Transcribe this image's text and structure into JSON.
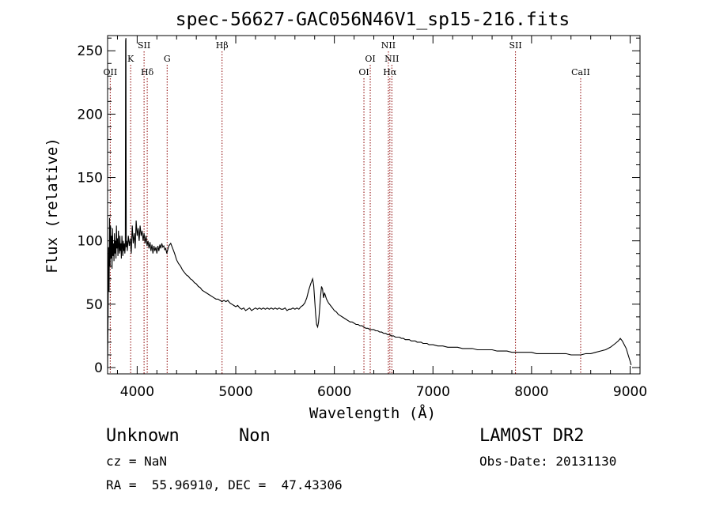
{
  "chart_data": {
    "type": "line",
    "title": "spec-56627-GAC056N46V1_sp15-216.fits",
    "xlabel": "Wavelength (Å)",
    "ylabel": "Flux (relative)",
    "xlim": [
      3700,
      9100
    ],
    "ylim": [
      -5,
      262
    ],
    "x_ticks": [
      4000,
      5000,
      6000,
      7000,
      8000,
      9000
    ],
    "y_ticks": [
      0,
      50,
      100,
      150,
      200,
      250
    ],
    "grid": false,
    "series": [
      {
        "color": "#000000",
        "points": [
          [
            3700,
            0
          ],
          [
            3705,
            40
          ],
          [
            3710,
            95
          ],
          [
            3715,
            60
          ],
          [
            3720,
            118
          ],
          [
            3725,
            80
          ],
          [
            3730,
            112
          ],
          [
            3735,
            86
          ],
          [
            3740,
            104
          ],
          [
            3745,
            78
          ],
          [
            3750,
            110
          ],
          [
            3755,
            88
          ],
          [
            3760,
            98
          ],
          [
            3765,
            84
          ],
          [
            3770,
            106
          ],
          [
            3775,
            90
          ],
          [
            3780,
            100
          ],
          [
            3785,
            86
          ],
          [
            3790,
            112
          ],
          [
            3795,
            94
          ],
          [
            3800,
            102
          ],
          [
            3805,
            88
          ],
          [
            3810,
            108
          ],
          [
            3815,
            96
          ],
          [
            3820,
            90
          ],
          [
            3825,
            104
          ],
          [
            3830,
            92
          ],
          [
            3835,
            98
          ],
          [
            3840,
            86
          ],
          [
            3845,
            104
          ],
          [
            3850,
            96
          ],
          [
            3855,
            88
          ],
          [
            3860,
            100
          ],
          [
            3865,
            92
          ],
          [
            3870,
            98
          ],
          [
            3875,
            90
          ],
          [
            3880,
            96
          ],
          [
            3883,
            258
          ],
          [
            3886,
            260
          ],
          [
            3889,
            95
          ],
          [
            3895,
            100
          ],
          [
            3900,
            92
          ],
          [
            3910,
            104
          ],
          [
            3920,
            96
          ],
          [
            3930,
            102
          ],
          [
            3940,
            90
          ],
          [
            3950,
            112
          ],
          [
            3960,
            98
          ],
          [
            3970,
            106
          ],
          [
            3980,
            94
          ],
          [
            3990,
            116
          ],
          [
            4000,
            104
          ],
          [
            4010,
            110
          ],
          [
            4020,
            100
          ],
          [
            4030,
            112
          ],
          [
            4040,
            104
          ],
          [
            4050,
            108
          ],
          [
            4060,
            100
          ],
          [
            4070,
            106
          ],
          [
            4080,
            98
          ],
          [
            4090,
            104
          ],
          [
            4100,
            96
          ],
          [
            4110,
            100
          ],
          [
            4120,
            94
          ],
          [
            4130,
            99
          ],
          [
            4140,
            92
          ],
          [
            4150,
            97
          ],
          [
            4160,
            90
          ],
          [
            4170,
            96
          ],
          [
            4180,
            92
          ],
          [
            4190,
            95
          ],
          [
            4200,
            90
          ],
          [
            4210,
            96
          ],
          [
            4220,
            92
          ],
          [
            4230,
            97
          ],
          [
            4240,
            94
          ],
          [
            4250,
            98
          ],
          [
            4260,
            95
          ],
          [
            4270,
            96
          ],
          [
            4280,
            93
          ],
          [
            4290,
            94
          ],
          [
            4300,
            90
          ],
          [
            4320,
            96
          ],
          [
            4340,
            98
          ],
          [
            4360,
            94
          ],
          [
            4380,
            90
          ],
          [
            4400,
            85
          ],
          [
            4420,
            82
          ],
          [
            4440,
            80
          ],
          [
            4460,
            77
          ],
          [
            4480,
            75
          ],
          [
            4500,
            73
          ],
          [
            4520,
            72
          ],
          [
            4540,
            70
          ],
          [
            4560,
            69
          ],
          [
            4580,
            67
          ],
          [
            4600,
            66
          ],
          [
            4620,
            64
          ],
          [
            4640,
            63
          ],
          [
            4660,
            61
          ],
          [
            4680,
            60
          ],
          [
            4700,
            59
          ],
          [
            4720,
            58
          ],
          [
            4740,
            57
          ],
          [
            4760,
            56
          ],
          [
            4780,
            55
          ],
          [
            4800,
            54
          ],
          [
            4820,
            54
          ],
          [
            4840,
            53
          ],
          [
            4860,
            52
          ],
          [
            4880,
            53
          ],
          [
            4900,
            52
          ],
          [
            4920,
            53
          ],
          [
            4940,
            51
          ],
          [
            4960,
            50
          ],
          [
            4980,
            49
          ],
          [
            5000,
            48
          ],
          [
            5020,
            49
          ],
          [
            5040,
            47
          ],
          [
            5060,
            46
          ],
          [
            5080,
            47
          ],
          [
            5100,
            45
          ],
          [
            5120,
            46
          ],
          [
            5140,
            47
          ],
          [
            5160,
            45
          ],
          [
            5180,
            46
          ],
          [
            5200,
            47
          ],
          [
            5220,
            46
          ],
          [
            5240,
            47
          ],
          [
            5260,
            46
          ],
          [
            5280,
            47
          ],
          [
            5300,
            46
          ],
          [
            5320,
            47
          ],
          [
            5340,
            46
          ],
          [
            5360,
            47
          ],
          [
            5380,
            46
          ],
          [
            5400,
            47
          ],
          [
            5420,
            46
          ],
          [
            5440,
            47
          ],
          [
            5460,
            46
          ],
          [
            5480,
            46
          ],
          [
            5500,
            47
          ],
          [
            5520,
            45
          ],
          [
            5540,
            46
          ],
          [
            5560,
            46
          ],
          [
            5580,
            47
          ],
          [
            5600,
            46
          ],
          [
            5620,
            47
          ],
          [
            5640,
            46
          ],
          [
            5660,
            48
          ],
          [
            5680,
            49
          ],
          [
            5700,
            51
          ],
          [
            5720,
            55
          ],
          [
            5740,
            61
          ],
          [
            5760,
            66
          ],
          [
            5780,
            70
          ],
          [
            5790,
            65
          ],
          [
            5800,
            54
          ],
          [
            5810,
            42
          ],
          [
            5820,
            34
          ],
          [
            5830,
            32
          ],
          [
            5840,
            36
          ],
          [
            5850,
            46
          ],
          [
            5860,
            56
          ],
          [
            5870,
            64
          ],
          [
            5880,
            62
          ],
          [
            5890,
            55
          ],
          [
            5900,
            59
          ],
          [
            5920,
            54
          ],
          [
            5940,
            51
          ],
          [
            5960,
            49
          ],
          [
            5980,
            47
          ],
          [
            6000,
            45
          ],
          [
            6020,
            44
          ],
          [
            6040,
            42
          ],
          [
            6060,
            41
          ],
          [
            6080,
            40
          ],
          [
            6100,
            39
          ],
          [
            6120,
            38
          ],
          [
            6140,
            37
          ],
          [
            6160,
            36
          ],
          [
            6180,
            36
          ],
          [
            6200,
            35
          ],
          [
            6220,
            34
          ],
          [
            6240,
            34
          ],
          [
            6260,
            33
          ],
          [
            6280,
            33
          ],
          [
            6300,
            32
          ],
          [
            6320,
            31
          ],
          [
            6340,
            31
          ],
          [
            6360,
            30
          ],
          [
            6380,
            30
          ],
          [
            6400,
            30
          ],
          [
            6420,
            29
          ],
          [
            6440,
            29
          ],
          [
            6460,
            28
          ],
          [
            6480,
            28
          ],
          [
            6500,
            27
          ],
          [
            6520,
            27
          ],
          [
            6540,
            26
          ],
          [
            6560,
            26
          ],
          [
            6580,
            25
          ],
          [
            6600,
            25
          ],
          [
            6620,
            24
          ],
          [
            6640,
            24
          ],
          [
            6660,
            24
          ],
          [
            6680,
            23
          ],
          [
            6700,
            23
          ],
          [
            6720,
            22
          ],
          [
            6740,
            22
          ],
          [
            6760,
            22
          ],
          [
            6780,
            21
          ],
          [
            6800,
            21
          ],
          [
            6820,
            21
          ],
          [
            6840,
            20
          ],
          [
            6860,
            20
          ],
          [
            6880,
            20
          ],
          [
            6900,
            19
          ],
          [
            6920,
            19
          ],
          [
            6940,
            19
          ],
          [
            6960,
            18
          ],
          [
            6980,
            18
          ],
          [
            7000,
            18
          ],
          [
            7050,
            17
          ],
          [
            7100,
            17
          ],
          [
            7150,
            16
          ],
          [
            7200,
            16
          ],
          [
            7250,
            16
          ],
          [
            7300,
            15
          ],
          [
            7350,
            15
          ],
          [
            7400,
            15
          ],
          [
            7450,
            14
          ],
          [
            7500,
            14
          ],
          [
            7550,
            14
          ],
          [
            7600,
            14
          ],
          [
            7650,
            13
          ],
          [
            7700,
            13
          ],
          [
            7750,
            13
          ],
          [
            7800,
            12
          ],
          [
            7850,
            12
          ],
          [
            7900,
            12
          ],
          [
            7950,
            12
          ],
          [
            8000,
            12
          ],
          [
            8050,
            11
          ],
          [
            8100,
            11
          ],
          [
            8150,
            11
          ],
          [
            8200,
            11
          ],
          [
            8250,
            11
          ],
          [
            8300,
            11
          ],
          [
            8350,
            11
          ],
          [
            8400,
            10
          ],
          [
            8450,
            10
          ],
          [
            8500,
            10
          ],
          [
            8550,
            11
          ],
          [
            8600,
            11
          ],
          [
            8650,
            12
          ],
          [
            8700,
            13
          ],
          [
            8750,
            14
          ],
          [
            8800,
            16
          ],
          [
            8850,
            19
          ],
          [
            8880,
            21
          ],
          [
            8900,
            23
          ],
          [
            8920,
            21
          ],
          [
            8940,
            18
          ],
          [
            8960,
            15
          ],
          [
            8980,
            10
          ],
          [
            9000,
            5
          ],
          [
            9010,
            2
          ]
        ]
      }
    ],
    "lines": [
      {
        "label": "OII",
        "x": 3727,
        "tier": 3
      },
      {
        "label": "K",
        "x": 3934,
        "tier": 2
      },
      {
        "label": "SII",
        "x": 4070,
        "tier": 1
      },
      {
        "label": "Hδ",
        "x": 4102,
        "tier": 3
      },
      {
        "label": "G",
        "x": 4304,
        "tier": 2
      },
      {
        "label": "Hβ",
        "x": 4861,
        "tier": 1
      },
      {
        "label": "OI",
        "x": 6300,
        "tier": 3
      },
      {
        "label": "OI",
        "x": 6364,
        "tier": 2
      },
      {
        "label": "NII",
        "x": 6548,
        "tier": 1
      },
      {
        "label": "Hα",
        "x": 6563,
        "tier": 3
      },
      {
        "label": "NII",
        "x": 6583,
        "tier": 2
      },
      {
        "label": "SII",
        "x": 7837,
        "tier": 1
      },
      {
        "label": "CaII",
        "x": 8498,
        "tier": 3
      }
    ],
    "line_color": "#8b0000",
    "curve_color": "#000000"
  },
  "info": {
    "class_label": "Unknown",
    "subclass_label": "Non",
    "survey": "LAMOST DR2",
    "cz": "cz = NaN",
    "obs_date": "Obs-Date: 20131130",
    "coords": "RA =  55.96910, DEC =  47.43306"
  }
}
